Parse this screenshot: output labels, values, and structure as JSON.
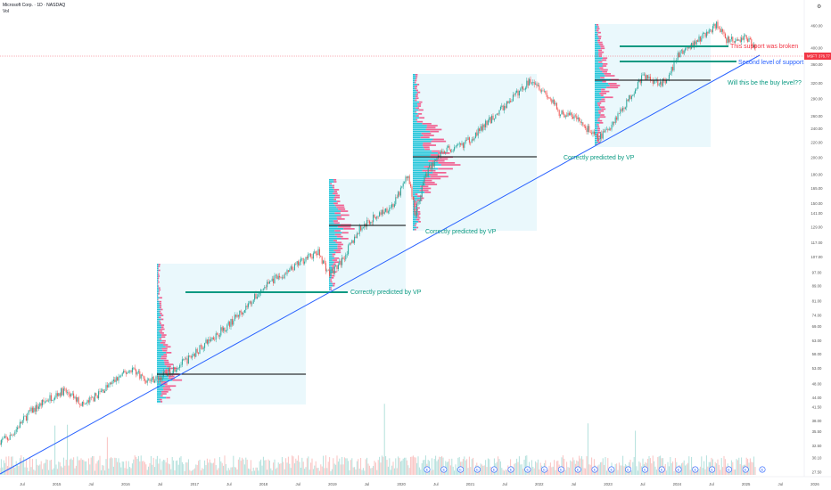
{
  "header": {
    "title": "Microsoft Corp. · 1D · NASDAQ",
    "volume_label": "Vol"
  },
  "price_tag": {
    "ticker": "MSFT",
    "value": "376.77",
    "color": "#f23645"
  },
  "colors": {
    "up": "#26a69a",
    "down": "#ef5350",
    "trendline": "#2962ff",
    "vp_box": "#e3f5fb",
    "vp_bar_up": "#26c6da",
    "vp_bar_down": "#f06292",
    "poc_line": "#000000",
    "support_line": "#089981",
    "annotation_green": "#089981",
    "annotation_red": "#f23645",
    "annotation_blue": "#2962ff"
  },
  "chart_data": {
    "type": "line",
    "scale": "log",
    "x_axis_labels": [
      "Jul",
      "2015",
      "Jul",
      "2016",
      "Jul",
      "2017",
      "Jul",
      "2018",
      "Jul",
      "2019",
      "Jul",
      "2020",
      "Jul",
      "2021",
      "Jul",
      "2022",
      "Jul",
      "2023",
      "Jul",
      "2024",
      "Jul",
      "2025",
      "Jul",
      "2026"
    ],
    "y_axis_labels": [
      "460.00",
      "400.00",
      "360.00",
      "320.00",
      "290.00",
      "260.00",
      "240.00",
      "220.00",
      "200.00",
      "180.00",
      "165.00",
      "150.00",
      "141.00",
      "129.00",
      "117.00",
      "107.00",
      "97.00",
      "89.00",
      "81.00",
      "74.00",
      "69.00",
      "63.00",
      "58.00",
      "53.00",
      "48.00",
      "44.00",
      "41.50",
      "38.00",
      "35.50",
      "32.50",
      "30.10",
      "27.50"
    ],
    "series": [
      {
        "values_approx": {
          "2014-07": 44,
          "2015-01": 47,
          "2015-07": 45,
          "2016-01": 52,
          "2016-07": 53,
          "2017-01": 63,
          "2017-07": 72,
          "2018-01": 94,
          "2018-07": 106,
          "2019-01": 102,
          "2019-07": 137,
          "2020-01": 170,
          "2020-03": 140,
          "2020-07": 205,
          "2021-01": 230,
          "2021-07": 285,
          "2021-11": 340,
          "2022-07": 260,
          "2022-11": 225,
          "2023-07": 340,
          "2024-01": 400,
          "2024-07": 460,
          "2025-01": 420,
          "2025-04": 376.77
        }
      }
    ],
    "annotations": [
      "Correctly predicted by VP",
      "Correctly predicted by VP",
      "Correctly predicted by VP",
      "This support was broken",
      "Second level of support",
      "Will this be the buy level??"
    ],
    "grid": false
  },
  "earnings_markers": [
    "E",
    "E",
    "E",
    "E",
    "E",
    "E",
    "E",
    "E",
    "E",
    "E",
    "E",
    "E",
    "E",
    "E",
    "E",
    "E",
    "E",
    "E",
    "E",
    "E",
    "E"
  ]
}
